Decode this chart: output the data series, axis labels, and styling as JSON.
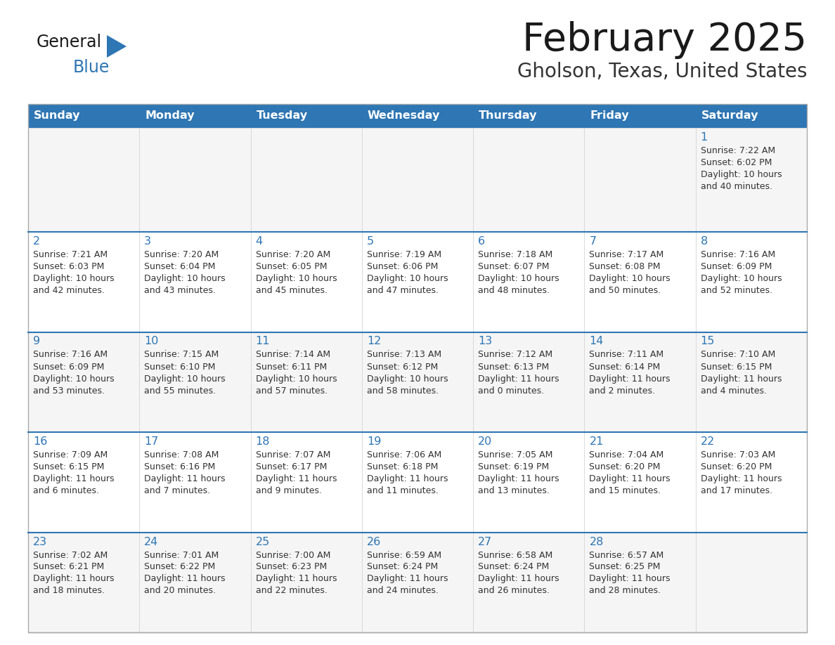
{
  "title": "February 2025",
  "subtitle": "Gholson, Texas, United States",
  "header_bg": "#2E76B4",
  "header_text": "#FFFFFF",
  "cell_bg": "#FFFFFF",
  "cell_bg_alt": "#F5F5F5",
  "border_color": "#CCCCCC",
  "week_divider_color": "#2E76B4",
  "day_headers": [
    "Sunday",
    "Monday",
    "Tuesday",
    "Wednesday",
    "Thursday",
    "Friday",
    "Saturday"
  ],
  "title_color": "#1a1a1a",
  "subtitle_color": "#333333",
  "day_num_color": "#2E76B4",
  "cell_text_color": "#333333",
  "logo_general_color": "#1a1a1a",
  "logo_blue_color": "#2E76B4",
  "calendar_data": [
    [
      null,
      null,
      null,
      null,
      null,
      null,
      {
        "day": 1,
        "sunrise": "7:22 AM",
        "sunset": "6:02 PM",
        "daylight": "10 hours",
        "daylight2": "and 40 minutes."
      }
    ],
    [
      {
        "day": 2,
        "sunrise": "7:21 AM",
        "sunset": "6:03 PM",
        "daylight": "10 hours",
        "daylight2": "and 42 minutes."
      },
      {
        "day": 3,
        "sunrise": "7:20 AM",
        "sunset": "6:04 PM",
        "daylight": "10 hours",
        "daylight2": "and 43 minutes."
      },
      {
        "day": 4,
        "sunrise": "7:20 AM",
        "sunset": "6:05 PM",
        "daylight": "10 hours",
        "daylight2": "and 45 minutes."
      },
      {
        "day": 5,
        "sunrise": "7:19 AM",
        "sunset": "6:06 PM",
        "daylight": "10 hours",
        "daylight2": "and 47 minutes."
      },
      {
        "day": 6,
        "sunrise": "7:18 AM",
        "sunset": "6:07 PM",
        "daylight": "10 hours",
        "daylight2": "and 48 minutes."
      },
      {
        "day": 7,
        "sunrise": "7:17 AM",
        "sunset": "6:08 PM",
        "daylight": "10 hours",
        "daylight2": "and 50 minutes."
      },
      {
        "day": 8,
        "sunrise": "7:16 AM",
        "sunset": "6:09 PM",
        "daylight": "10 hours",
        "daylight2": "and 52 minutes."
      }
    ],
    [
      {
        "day": 9,
        "sunrise": "7:16 AM",
        "sunset": "6:09 PM",
        "daylight": "10 hours",
        "daylight2": "and 53 minutes."
      },
      {
        "day": 10,
        "sunrise": "7:15 AM",
        "sunset": "6:10 PM",
        "daylight": "10 hours",
        "daylight2": "and 55 minutes."
      },
      {
        "day": 11,
        "sunrise": "7:14 AM",
        "sunset": "6:11 PM",
        "daylight": "10 hours",
        "daylight2": "and 57 minutes."
      },
      {
        "day": 12,
        "sunrise": "7:13 AM",
        "sunset": "6:12 PM",
        "daylight": "10 hours",
        "daylight2": "and 58 minutes."
      },
      {
        "day": 13,
        "sunrise": "7:12 AM",
        "sunset": "6:13 PM",
        "daylight": "11 hours",
        "daylight2": "and 0 minutes."
      },
      {
        "day": 14,
        "sunrise": "7:11 AM",
        "sunset": "6:14 PM",
        "daylight": "11 hours",
        "daylight2": "and 2 minutes."
      },
      {
        "day": 15,
        "sunrise": "7:10 AM",
        "sunset": "6:15 PM",
        "daylight": "11 hours",
        "daylight2": "and 4 minutes."
      }
    ],
    [
      {
        "day": 16,
        "sunrise": "7:09 AM",
        "sunset": "6:15 PM",
        "daylight": "11 hours",
        "daylight2": "and 6 minutes."
      },
      {
        "day": 17,
        "sunrise": "7:08 AM",
        "sunset": "6:16 PM",
        "daylight": "11 hours",
        "daylight2": "and 7 minutes."
      },
      {
        "day": 18,
        "sunrise": "7:07 AM",
        "sunset": "6:17 PM",
        "daylight": "11 hours",
        "daylight2": "and 9 minutes."
      },
      {
        "day": 19,
        "sunrise": "7:06 AM",
        "sunset": "6:18 PM",
        "daylight": "11 hours",
        "daylight2": "and 11 minutes."
      },
      {
        "day": 20,
        "sunrise": "7:05 AM",
        "sunset": "6:19 PM",
        "daylight": "11 hours",
        "daylight2": "and 13 minutes."
      },
      {
        "day": 21,
        "sunrise": "7:04 AM",
        "sunset": "6:20 PM",
        "daylight": "11 hours",
        "daylight2": "and 15 minutes."
      },
      {
        "day": 22,
        "sunrise": "7:03 AM",
        "sunset": "6:20 PM",
        "daylight": "11 hours",
        "daylight2": "and 17 minutes."
      }
    ],
    [
      {
        "day": 23,
        "sunrise": "7:02 AM",
        "sunset": "6:21 PM",
        "daylight": "11 hours",
        "daylight2": "and 18 minutes."
      },
      {
        "day": 24,
        "sunrise": "7:01 AM",
        "sunset": "6:22 PM",
        "daylight": "11 hours",
        "daylight2": "and 20 minutes."
      },
      {
        "day": 25,
        "sunrise": "7:00 AM",
        "sunset": "6:23 PM",
        "daylight": "11 hours",
        "daylight2": "and 22 minutes."
      },
      {
        "day": 26,
        "sunrise": "6:59 AM",
        "sunset": "6:24 PM",
        "daylight": "11 hours",
        "daylight2": "and 24 minutes."
      },
      {
        "day": 27,
        "sunrise": "6:58 AM",
        "sunset": "6:24 PM",
        "daylight": "11 hours",
        "daylight2": "and 26 minutes."
      },
      {
        "day": 28,
        "sunrise": "6:57 AM",
        "sunset": "6:25 PM",
        "daylight": "11 hours",
        "daylight2": "and 28 minutes."
      },
      null
    ]
  ]
}
